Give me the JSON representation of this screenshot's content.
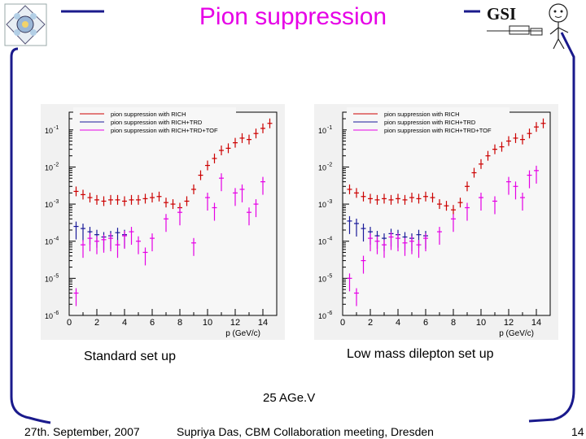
{
  "slide": {
    "title": "Pion suppression",
    "caption_left": "Standard set up",
    "caption_right": "Low mass dilepton set up",
    "energy": "25 AGe.V",
    "footer_date": "27th. September, 2007",
    "footer_author": "Supriya Das, CBM Collaboration meeting, Dresden",
    "page_number": "14"
  },
  "colors": {
    "title": "#e600e6",
    "frame": "#1a1a8c",
    "rich": "#cc0000",
    "rich_trd": "#1a1a99",
    "rich_trd_tof": "#e600e6"
  },
  "chart_data": [
    {
      "type": "scatter",
      "log_y": true,
      "xlabel": "p (GeV/c)",
      "ylabel": "",
      "xlim": [
        0,
        15
      ],
      "ylim": [
        1e-06,
        0.3
      ],
      "x_ticks": [
        0,
        2,
        4,
        6,
        8,
        10,
        12,
        14
      ],
      "y_ticks": [
        {
          "value": 0.1,
          "base": "10",
          "exp": "-1"
        },
        {
          "value": 0.01,
          "base": "10",
          "exp": "-2"
        },
        {
          "value": 0.001,
          "base": "10",
          "exp": "-3"
        },
        {
          "value": 0.0001,
          "base": "10",
          "exp": "-4"
        },
        {
          "value": 1e-05,
          "base": "10",
          "exp": "-5"
        },
        {
          "value": 1e-06,
          "base": "10",
          "exp": "-6"
        }
      ],
      "legend": [
        "pion suppression with RICH",
        "pion suppression with RICH+TRD",
        "pion suppression with RICH+TRD+TOF"
      ],
      "legend_position": "top",
      "series": [
        {
          "name": "pion suppression with RICH",
          "color": "#cc0000",
          "x": [
            0.5,
            1.0,
            1.5,
            2.0,
            2.5,
            3.0,
            3.5,
            4.0,
            4.5,
            5.0,
            5.5,
            6.0,
            6.5,
            7.0,
            7.5,
            8.0,
            8.5,
            9.0,
            9.5,
            10.0,
            10.5,
            11.0,
            11.5,
            12.0,
            12.5,
            13.0,
            13.5,
            14.0,
            14.5
          ],
          "y": [
            0.0022,
            0.0018,
            0.0015,
            0.0013,
            0.0012,
            0.0013,
            0.0013,
            0.0012,
            0.0013,
            0.0013,
            0.0014,
            0.0015,
            0.0016,
            0.0011,
            0.001,
            0.0008,
            0.0012,
            0.0025,
            0.006,
            0.011,
            0.017,
            0.028,
            0.032,
            0.045,
            0.06,
            0.055,
            0.08,
            0.11,
            0.15
          ]
        },
        {
          "name": "pion suppression with RICH+TRD",
          "color": "#1a1a99",
          "x": [
            0.5,
            1.0,
            1.5,
            2.0,
            2.5,
            3.0,
            3.5,
            4.0
          ],
          "y": [
            0.00025,
            0.00022,
            0.00018,
            0.00015,
            0.00013,
            0.00014,
            0.00017,
            0.00015
          ]
        },
        {
          "name": "pion suppression with RICH+TRD+TOF",
          "color": "#e600e6",
          "x": [
            0.5,
            1.0,
            1.5,
            2.0,
            2.5,
            3.0,
            3.5,
            4.0,
            4.5,
            5.0,
            5.5,
            6.0,
            7.0,
            8.0,
            9.0,
            10.0,
            10.5,
            11.0,
            12.0,
            12.5,
            13.0,
            13.5,
            14.0
          ],
          "y": [
            4e-06,
            8e-05,
            0.00012,
            0.0001,
            0.00011,
            0.00012,
            8e-05,
            0.00014,
            0.00018,
            0.0001,
            5e-05,
            0.00012,
            0.0004,
            0.0006,
            9e-05,
            0.0015,
            0.0008,
            0.005,
            0.002,
            0.0025,
            0.0006,
            0.001,
            0.004
          ]
        }
      ]
    },
    {
      "type": "scatter",
      "log_y": true,
      "xlabel": "p (GeV/c)",
      "ylabel": "",
      "xlim": [
        0,
        15
      ],
      "ylim": [
        1e-06,
        0.3
      ],
      "x_ticks": [
        0,
        2,
        4,
        6,
        8,
        10,
        12,
        14
      ],
      "y_ticks": [
        {
          "value": 0.1,
          "base": "10",
          "exp": "-1"
        },
        {
          "value": 0.01,
          "base": "10",
          "exp": "-2"
        },
        {
          "value": 0.001,
          "base": "10",
          "exp": "-3"
        },
        {
          "value": 0.0001,
          "base": "10",
          "exp": "-4"
        },
        {
          "value": 1e-05,
          "base": "10",
          "exp": "-5"
        },
        {
          "value": 1e-06,
          "base": "10",
          "exp": "-6"
        }
      ],
      "legend": [
        "pion suppression with RICH",
        "pion suppression with RICH+TRD",
        "pion suppression with RICH+TRD+TOF"
      ],
      "legend_position": "top",
      "series": [
        {
          "name": "pion suppression with RICH",
          "color": "#cc0000",
          "x": [
            0.5,
            1.0,
            1.5,
            2.0,
            2.5,
            3.0,
            3.5,
            4.0,
            4.5,
            5.0,
            5.5,
            6.0,
            6.5,
            7.0,
            7.5,
            8.0,
            8.5,
            9.0,
            9.5,
            10.0,
            10.5,
            11.0,
            11.5,
            12.0,
            12.5,
            13.0,
            13.5,
            14.0,
            14.5
          ],
          "y": [
            0.0025,
            0.002,
            0.0016,
            0.0014,
            0.0013,
            0.0014,
            0.0013,
            0.0014,
            0.0013,
            0.0015,
            0.0014,
            0.0016,
            0.0015,
            0.001,
            0.0009,
            0.0007,
            0.0011,
            0.003,
            0.007,
            0.012,
            0.02,
            0.03,
            0.035,
            0.05,
            0.06,
            0.055,
            0.08,
            0.12,
            0.15
          ]
        },
        {
          "name": "pion suppression with RICH+TRD",
          "color": "#1a1a99",
          "x": [
            0.5,
            1.0,
            1.5,
            2.0,
            2.5,
            3.0,
            3.5,
            4.0,
            4.5,
            5.0,
            5.5,
            6.0
          ],
          "y": [
            0.00035,
            0.0003,
            0.00022,
            0.00018,
            0.00014,
            0.00012,
            0.00016,
            0.00015,
            0.00013,
            0.00012,
            0.00015,
            0.00014
          ]
        },
        {
          "name": "pion suppression with RICH+TRD+TOF",
          "color": "#e600e6",
          "x": [
            0.5,
            1.0,
            1.5,
            2.0,
            2.5,
            3.0,
            3.5,
            4.0,
            4.5,
            5.0,
            5.5,
            6.0,
            7.0,
            8.0,
            9.0,
            10.0,
            11.0,
            12.0,
            12.5,
            13.0,
            13.5,
            14.0
          ],
          "y": [
            1e-05,
            4e-06,
            3e-05,
            0.00012,
            0.0001,
            8e-05,
            0.00013,
            0.00012,
            9e-05,
            0.0001,
            8e-05,
            0.00012,
            0.00018,
            0.0004,
            0.0008,
            0.0015,
            0.0012,
            0.004,
            0.003,
            0.0015,
            0.006,
            0.008
          ]
        }
      ]
    }
  ]
}
